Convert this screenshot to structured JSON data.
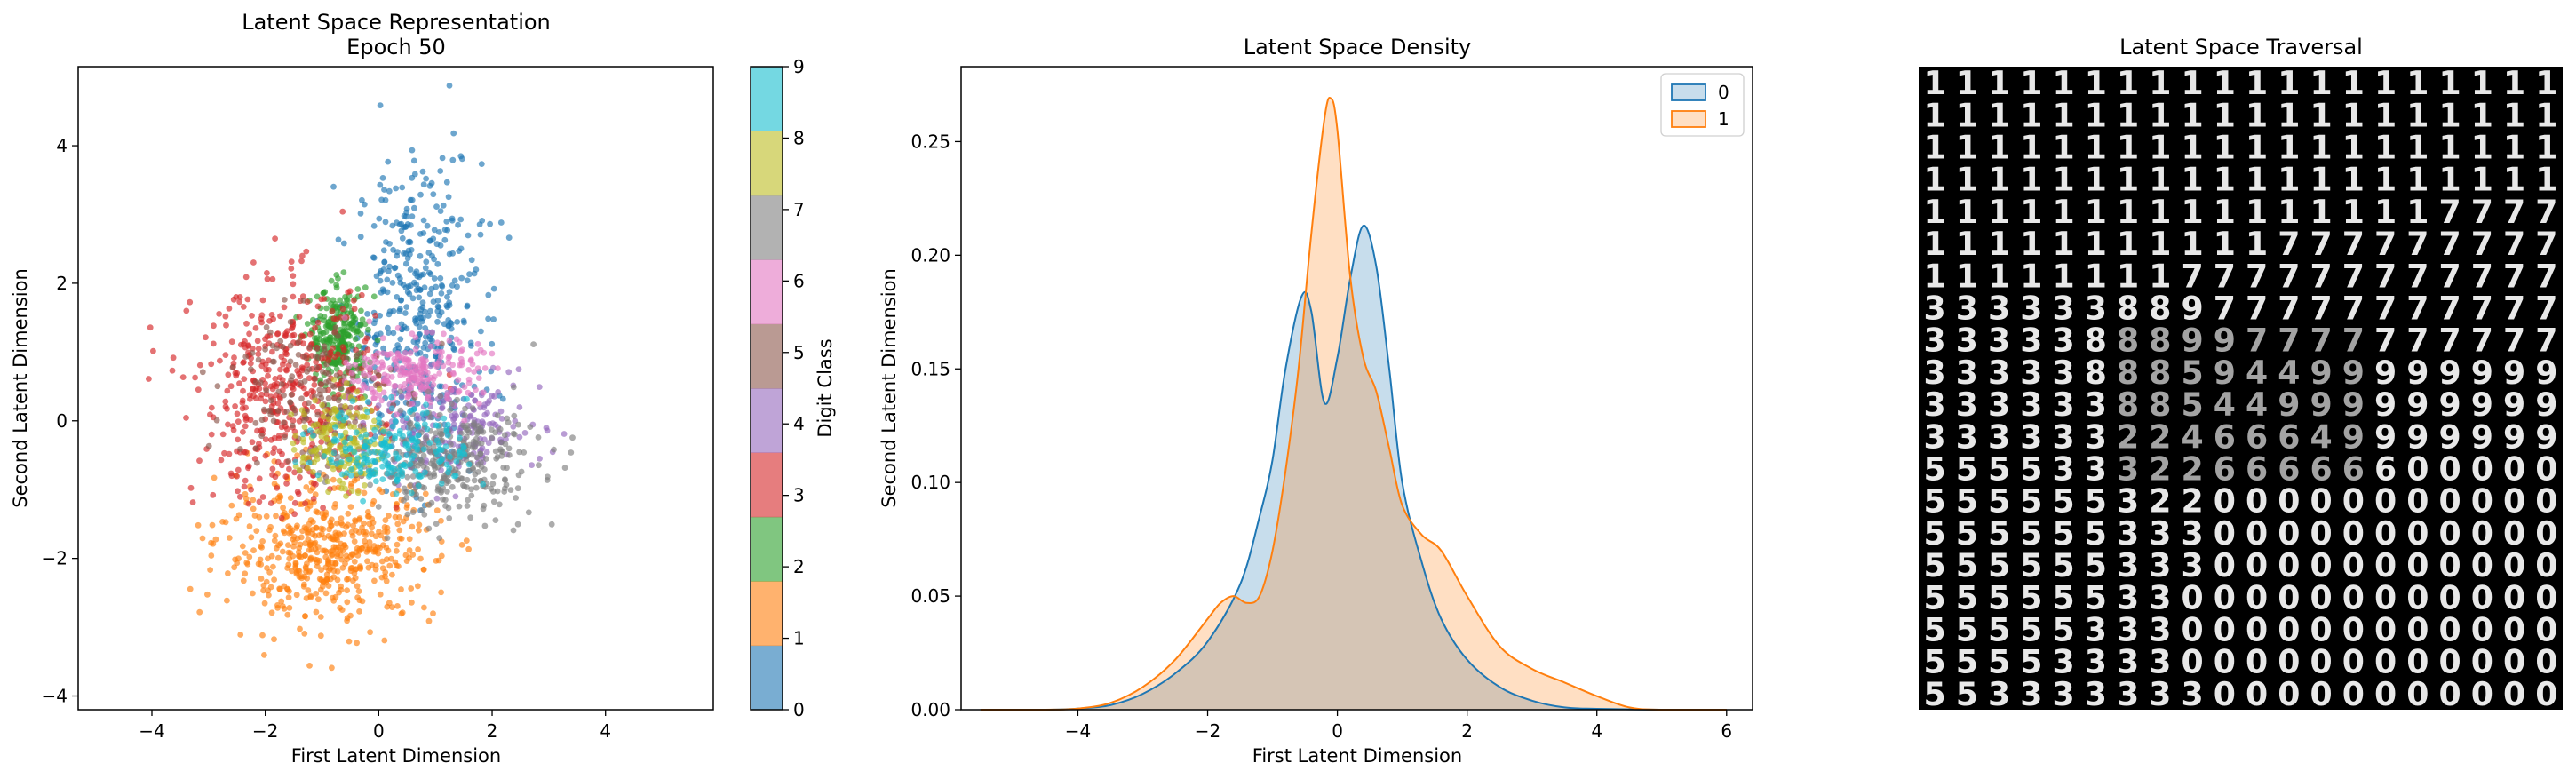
{
  "colors": {
    "tab10": [
      "#1f77b4",
      "#ff7f0e",
      "#2ca02c",
      "#d62728",
      "#9467bd",
      "#8c564b",
      "#e377c2",
      "#7f7f7f",
      "#bcbd22",
      "#17becf"
    ],
    "kde0": "#1f77b4",
    "kde1": "#ff7f0e"
  },
  "chart_data": [
    {
      "type": "scatter",
      "title": "Latent Space Representation\nEpoch 50",
      "xlabel": "First Latent Dimension",
      "ylabel": "Second Latent Dimension",
      "xlim": [
        -5.3,
        5.9
      ],
      "ylim": [
        -4.2,
        5.15
      ],
      "xticks": [
        -4,
        -2,
        0,
        2,
        4
      ],
      "yticks": [
        -4,
        -2,
        0,
        2,
        4
      ],
      "grid": false,
      "colorbar": {
        "label": "Digit Class",
        "ticks": [
          0,
          1,
          2,
          3,
          4,
          5,
          6,
          7,
          8,
          9
        ],
        "range": [
          0,
          9
        ],
        "cmap": "tab10"
      },
      "clusters": [
        {
          "class": 0,
          "center": [
            0.7,
            1.6
          ],
          "spread": [
            0.55,
            1.1
          ],
          "n": 420
        },
        {
          "class": 1,
          "center": [
            -0.9,
            -1.9
          ],
          "spread": [
            0.95,
            0.5
          ],
          "n": 520
        },
        {
          "class": 2,
          "center": [
            -0.7,
            1.2
          ],
          "spread": [
            0.25,
            0.35
          ],
          "n": 260
        },
        {
          "class": 3,
          "center": [
            -1.6,
            0.4
          ],
          "spread": [
            0.8,
            0.8
          ],
          "n": 470
        },
        {
          "class": 4,
          "center": [
            1.3,
            -0.1
          ],
          "spread": [
            0.8,
            0.35
          ],
          "n": 200
        },
        {
          "class": 5,
          "center": [
            -1.2,
            0.4
          ],
          "spread": [
            0.7,
            0.6
          ],
          "n": 180
        },
        {
          "class": 6,
          "center": [
            0.7,
            0.7
          ],
          "spread": [
            0.55,
            0.25
          ],
          "n": 220
        },
        {
          "class": 7,
          "center": [
            1.2,
            -0.6
          ],
          "spread": [
            0.8,
            0.4
          ],
          "n": 340
        },
        {
          "class": 8,
          "center": [
            -0.7,
            -0.3
          ],
          "spread": [
            0.35,
            0.35
          ],
          "n": 160
        },
        {
          "class": 9,
          "center": [
            0.3,
            -0.4
          ],
          "spread": [
            0.65,
            0.3
          ],
          "n": 200
        }
      ]
    },
    {
      "type": "area",
      "title": "Latent Space Density",
      "xlabel": "First Latent Dimension",
      "ylabel": "Second Latent Dimension",
      "xlim": [
        -5.8,
        6.4
      ],
      "ylim": [
        0,
        0.283
      ],
      "xticks": [
        -4,
        -2,
        0,
        2,
        4,
        6
      ],
      "yticks": [
        0.0,
        0.05,
        0.1,
        0.15,
        0.2,
        0.25
      ],
      "ytick_labels": [
        "0.00",
        "0.05",
        "0.10",
        "0.15",
        "0.20",
        "0.25"
      ],
      "legend": "top-right",
      "series": [
        {
          "name": "0",
          "x": [
            -5.5,
            -4.5,
            -4.0,
            -3.5,
            -3.0,
            -2.5,
            -2.0,
            -1.5,
            -1.2,
            -1.0,
            -0.8,
            -0.55,
            -0.4,
            -0.2,
            0.0,
            0.2,
            0.4,
            0.6,
            0.8,
            1.0,
            1.3,
            1.6,
            2.0,
            2.5,
            3.0,
            3.5,
            4.0,
            5.0,
            6.0
          ],
          "y": [
            0.0,
            0.0,
            0.0005,
            0.002,
            0.007,
            0.016,
            0.03,
            0.055,
            0.085,
            0.11,
            0.15,
            0.182,
            0.175,
            0.135,
            0.155,
            0.19,
            0.213,
            0.195,
            0.15,
            0.1,
            0.065,
            0.04,
            0.022,
            0.01,
            0.004,
            0.001,
            0.0004,
            0.0,
            0.0
          ]
        },
        {
          "name": "1",
          "x": [
            -5.5,
            -4.5,
            -4.0,
            -3.5,
            -3.0,
            -2.5,
            -2.0,
            -1.8,
            -1.6,
            -1.4,
            -1.2,
            -1.0,
            -0.8,
            -0.6,
            -0.4,
            -0.2,
            -0.1,
            0.0,
            0.2,
            0.4,
            0.6,
            0.8,
            1.0,
            1.3,
            1.6,
            2.0,
            2.5,
            3.0,
            3.5,
            4.0,
            4.5,
            5.0,
            6.0
          ],
          "y": [
            0.0,
            0.0,
            0.0005,
            0.003,
            0.01,
            0.022,
            0.04,
            0.047,
            0.05,
            0.047,
            0.05,
            0.07,
            0.105,
            0.15,
            0.21,
            0.26,
            0.269,
            0.255,
            0.19,
            0.155,
            0.14,
            0.115,
            0.09,
            0.077,
            0.07,
            0.05,
            0.028,
            0.018,
            0.012,
            0.006,
            0.001,
            0.0,
            0.0
          ]
        }
      ]
    },
    {
      "type": "heatmap",
      "title": "Latent Space Traversal",
      "grid_size": 20,
      "rows": [
        "11111111111111111111",
        "11111111111111111111",
        "11111111111111111111",
        "11111111111111111111",
        "11111111111111117777",
        "11111111111777777777",
        "11111111777777777777",
        "33333388977777777777",
        "33333888997777777777",
        "33333888594499999999",
        "33333388544999999999",
        "33333322466649999999",
        "55553332266666600000",
        "55555532200000000000",
        "55555533300000000000",
        "55555533300000000000",
        "55555533000000000000",
        "55555333000000000000",
        "55553333000000000000",
        "55333333300000000000"
      ]
    }
  ]
}
